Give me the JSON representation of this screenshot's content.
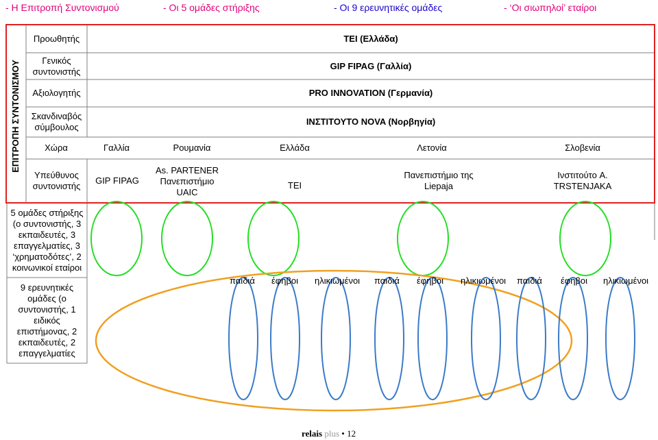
{
  "legend": [
    "- Η Επιτροπή Συντονισμού",
    "- Οι 5 ομάδες στήριξης",
    "- Οι 9 ερευνητικές ομάδες",
    "- ‘Οι σιωπηλοί’ εταίροι"
  ],
  "committee_label": "ΕΠΙΤΡΟΠΗ ΣΥΝΤΟΝΙΣΜΟΥ",
  "roles": {
    "promoter": "Προωθητής",
    "general_coordinator": "Γενικός συντονιστής",
    "evaluator": "Αξιολογητής",
    "scandinavian_advisor": "Σκανδιναβός σύμβουλος",
    "country": "Χώρα",
    "responsible_coordinator": "Υπεύθυνος συντονιστής"
  },
  "role_values": {
    "promoter": "TEI (Ελλάδα)",
    "general_coordinator": "GIP FIPAG (Γαλλία)",
    "evaluator": "PRO INNOVATION (Γερμανία)",
    "scandinavian_advisor": "ΙΝΣΤΙΤΟΥΤΟ NOVA (Νορβηγία)"
  },
  "countries": [
    "Γαλλία",
    "Ρουμανία",
    "Ελλάδα",
    "Λετονία",
    "Σλοβενία"
  ],
  "coordinators": [
    "GIP FIPAG",
    "As. PARTENER Πανεπιστήμιο UAIC",
    "TEI",
    "Πανεπιστήμιο της Liepaja",
    "Ινστιτούτο A. TRSTENJAKA"
  ],
  "support_groups_text": "5 ομάδες στήριξης (ο συντονιστής, 3 εκπαιδευτές, 3 επαγγελματίες, 3 ‘χρηματοδότες’, 2 κοινωνικοί εταίροι",
  "research_groups_text": "9 ερευνητικές ομάδες (ο συντονιστής, 1 ειδικός επιστήμονας, 2 εκπαιδευτές, 2 επαγγελματίες",
  "age_groups": [
    "παιδιά",
    "έφηβοι",
    "ηλικιωμένοι",
    "παιδιά",
    "έφηβοι",
    "ηλικιωμένοι",
    "παιδιά",
    "έφηβοι",
    "ηλικιωμένοι"
  ],
  "footer": {
    "brand_bold": "relais",
    "brand_light": "plus",
    "bullet": "•",
    "page": "12"
  },
  "colors": {
    "pink": "#e0007a",
    "blue": "#1a00cc",
    "red": "#e02020",
    "green": "#22dd22",
    "orange": "#f0a020",
    "blue_ellipse": "#3a7ac8",
    "grid": "#7f7f7f"
  }
}
